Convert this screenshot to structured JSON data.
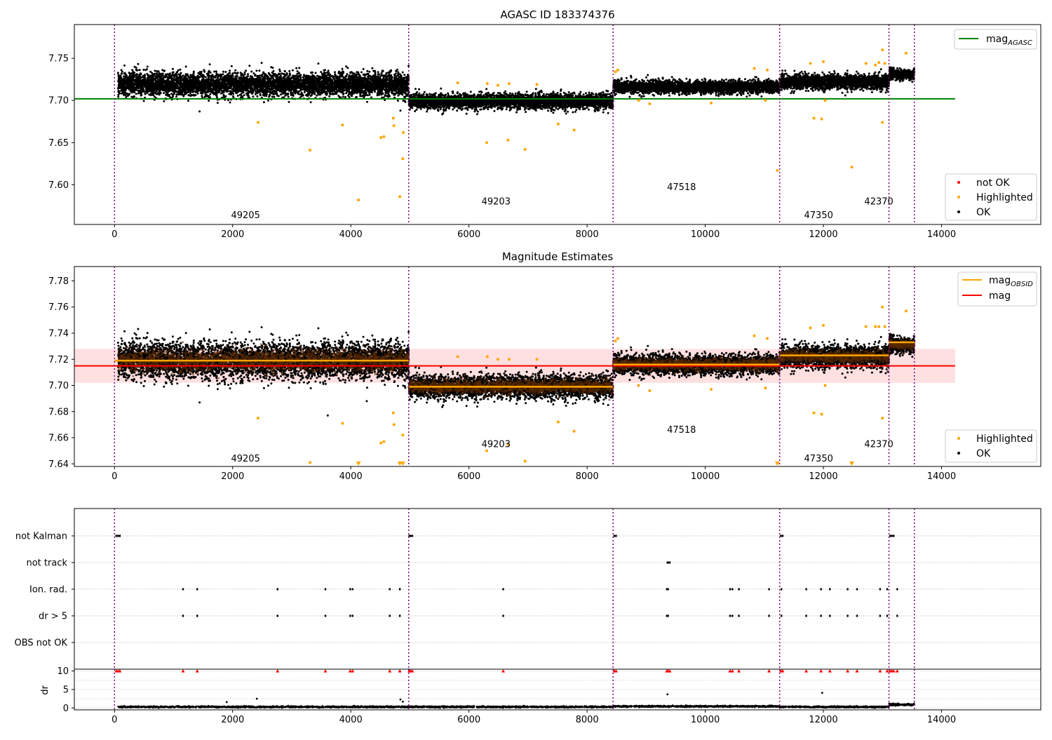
{
  "figure": {
    "panels": {
      "top": {
        "title": "AGASC ID 183374376",
        "legend_lines": [
          {
            "label": "mag",
            "subscript": "AGASC",
            "color": "#008000"
          }
        ],
        "legend_markers": [
          {
            "label": "not OK",
            "color": "#ff0000"
          },
          {
            "label": "Highlighted",
            "color": "#ffa500"
          },
          {
            "label": "OK",
            "color": "#000000"
          }
        ]
      },
      "middle": {
        "title": "Magnitude Estimates",
        "legend_lines": [
          {
            "label": "mag",
            "subscript": "OBSID",
            "color": "#ffa500"
          },
          {
            "label": "mag",
            "subscript": "",
            "color": "#ff0000"
          }
        ],
        "legend_markers": [
          {
            "label": "Highlighted",
            "color": "#ffa500"
          },
          {
            "label": "OK",
            "color": "#000000"
          }
        ]
      },
      "flags": {
        "categories": [
          "not Kalman",
          "not track",
          "Ion. rad.",
          "dr > 5",
          "OBS not OK"
        ]
      },
      "dr": {
        "ylabel": "dr"
      }
    }
  },
  "chart_data": [
    {
      "type": "scatter",
      "title": "AGASC ID 183374376",
      "xlabel": "",
      "ylabel": "",
      "xlim": [
        -680,
        15680
      ],
      "ylim": [
        7.553,
        7.79
      ],
      "xticks": [
        0,
        2000,
        4000,
        6000,
        8000,
        10000,
        12000,
        14000
      ],
      "yticks": [
        7.6,
        7.65,
        7.7,
        7.75
      ],
      "legend_position": "top-right / bottom-right",
      "reference_lines": [
        {
          "name": "mag_AGASC",
          "y": 7.702,
          "x_range": [
            -680,
            14230
          ],
          "color": "#008000"
        }
      ],
      "obsid_boundaries": [
        0,
        4980,
        8440,
        11260,
        13110,
        13540
      ],
      "obsid_labels": [
        {
          "text": "49205",
          "x": 2480,
          "y": 7.564
        },
        {
          "text": "49203",
          "x": 6720,
          "y": 7.58
        },
        {
          "text": "47518",
          "x": 9860,
          "y": 7.597
        },
        {
          "text": "47350",
          "x": 12180,
          "y": 7.564
        },
        {
          "text": "42370",
          "x": 13200,
          "y": 7.58
        }
      ],
      "segments": [
        {
          "obsid": "49205",
          "x_range": [
            60,
            4980
          ],
          "center": 7.719,
          "spread": 0.011
        },
        {
          "obsid": "49203",
          "x_range": [
            4980,
            8440
          ],
          "center": 7.699,
          "spread": 0.007
        },
        {
          "obsid": "47518",
          "x_range": [
            8440,
            11260
          ],
          "center": 7.716,
          "spread": 0.006
        },
        {
          "obsid": "47350",
          "x_range": [
            11260,
            13110
          ],
          "center": 7.722,
          "spread": 0.007
        },
        {
          "obsid": "42370",
          "x_range": [
            13110,
            13540
          ],
          "center": 7.731,
          "spread": 0.005
        }
      ],
      "series": [
        {
          "name": "Highlighted",
          "color": "#ffa500",
          "points": [
            [
              2430,
              7.674
            ],
            [
              3310,
              7.641
            ],
            [
              3860,
              7.671
            ],
            [
              4130,
              7.582
            ],
            [
              4510,
              7.656
            ],
            [
              4560,
              7.657
            ],
            [
              4720,
              7.679
            ],
            [
              4730,
              7.67
            ],
            [
              4830,
              7.586
            ],
            [
              4880,
              7.631
            ],
            [
              4890,
              7.662
            ],
            [
              5810,
              7.721
            ],
            [
              6300,
              7.65
            ],
            [
              6310,
              7.72
            ],
            [
              6490,
              7.718
            ],
            [
              6660,
              7.653
            ],
            [
              6680,
              7.72
            ],
            [
              6950,
              7.642
            ],
            [
              7150,
              7.719
            ],
            [
              7510,
              7.672
            ],
            [
              7780,
              7.665
            ],
            [
              8480,
              7.734
            ],
            [
              8520,
              7.736
            ],
            [
              8870,
              7.7
            ],
            [
              9060,
              7.696
            ],
            [
              10100,
              7.697
            ],
            [
              10830,
              7.738
            ],
            [
              11020,
              7.7
            ],
            [
              11050,
              7.736
            ],
            [
              11220,
              7.617
            ],
            [
              11780,
              7.744
            ],
            [
              11840,
              7.679
            ],
            [
              11970,
              7.678
            ],
            [
              12000,
              7.746
            ],
            [
              12030,
              7.7
            ],
            [
              12480,
              7.621
            ],
            [
              12720,
              7.744
            ],
            [
              12880,
              7.742
            ],
            [
              12940,
              7.745
            ],
            [
              13000,
              7.674
            ],
            [
              13000,
              7.76
            ],
            [
              13040,
              7.744
            ],
            [
              13400,
              7.756
            ]
          ]
        },
        {
          "name": "OK",
          "color": "#000000",
          "points": [
            [
              1440,
              7.687
            ],
            [
              4840,
              7.688
            ]
          ]
        }
      ]
    },
    {
      "type": "scatter",
      "title": "Magnitude Estimates",
      "xlabel": "",
      "ylabel": "",
      "xlim": [
        -680,
        15680
      ],
      "ylim": [
        7.638,
        7.791
      ],
      "xticks": [
        0,
        2000,
        4000,
        6000,
        8000,
        10000,
        12000,
        14000
      ],
      "yticks": [
        7.64,
        7.66,
        7.68,
        7.7,
        7.72,
        7.74,
        7.76,
        7.78
      ],
      "legend_position": "top-right / bottom-right",
      "reference_lines": [
        {
          "name": "mag",
          "y": 7.715,
          "x_range": [
            -680,
            14230
          ],
          "color": "#ff0000",
          "band": [
            7.702,
            7.728
          ]
        }
      ],
      "obsid_boundaries": [
        0,
        4980,
        8440,
        11260,
        13110,
        13540
      ],
      "mag_obsid": [
        {
          "obsid": "49205",
          "x_range": [
            0,
            4980
          ],
          "y": 7.719
        },
        {
          "obsid": "49203",
          "x_range": [
            4980,
            8440
          ],
          "y": 7.699
        },
        {
          "obsid": "47518",
          "x_range": [
            8440,
            11260
          ],
          "y": 7.716
        },
        {
          "obsid": "47350",
          "x_range": [
            11260,
            13110
          ],
          "y": 7.723
        },
        {
          "obsid": "42370",
          "x_range": [
            13110,
            13540
          ],
          "y": 7.733
        }
      ],
      "obsid_labels": [
        {
          "text": "49205",
          "x": 2480,
          "y": 7.644
        },
        {
          "text": "49203",
          "x": 6720,
          "y": 7.655
        },
        {
          "text": "47518",
          "x": 9860,
          "y": 7.666
        },
        {
          "text": "47350",
          "x": 12180,
          "y": 7.644
        },
        {
          "text": "42370",
          "x": 13200,
          "y": 7.655
        }
      ],
      "off_scale_markers": [
        4130,
        4830,
        4880,
        11220,
        12480
      ],
      "series": [
        {
          "name": "Highlighted",
          "color": "#ffa500",
          "points": [
            [
              2430,
              7.675
            ],
            [
              3310,
              7.641
            ],
            [
              3860,
              7.671
            ],
            [
              4510,
              7.656
            ],
            [
              4560,
              7.657
            ],
            [
              4720,
              7.679
            ],
            [
              4730,
              7.67
            ],
            [
              4880,
              7.662
            ],
            [
              5810,
              7.722
            ],
            [
              6300,
              7.65
            ],
            [
              6310,
              7.722
            ],
            [
              6490,
              7.72
            ],
            [
              6660,
              7.655
            ],
            [
              6680,
              7.72
            ],
            [
              6950,
              7.642
            ],
            [
              7150,
              7.72
            ],
            [
              7510,
              7.672
            ],
            [
              7780,
              7.665
            ],
            [
              8480,
              7.734
            ],
            [
              8520,
              7.736
            ],
            [
              8870,
              7.7
            ],
            [
              9060,
              7.696
            ],
            [
              10100,
              7.697
            ],
            [
              10830,
              7.738
            ],
            [
              11020,
              7.698
            ],
            [
              11050,
              7.736
            ],
            [
              11780,
              7.744
            ],
            [
              11840,
              7.679
            ],
            [
              11970,
              7.678
            ],
            [
              12000,
              7.746
            ],
            [
              12030,
              7.7
            ],
            [
              12720,
              7.745
            ],
            [
              12880,
              7.745
            ],
            [
              12940,
              7.745
            ],
            [
              13000,
              7.675
            ],
            [
              13000,
              7.76
            ],
            [
              13040,
              7.745
            ],
            [
              13400,
              7.757
            ]
          ]
        },
        {
          "name": "OK",
          "color": "#000000",
          "points": [
            [
              1440,
              7.687
            ],
            [
              4270,
              7.688
            ],
            [
              3610,
              7.677
            ]
          ]
        }
      ]
    },
    {
      "type": "scatter",
      "title": "",
      "xlabel": "",
      "ylabel": "",
      "xlim": [
        -680,
        15680
      ],
      "categories": [
        "not Kalman",
        "not track",
        "Ion. rad.",
        "dr > 5",
        "OBS not OK"
      ],
      "obsid_boundaries": [
        0,
        4980,
        8440,
        11260,
        13110,
        13540
      ],
      "series": [
        {
          "name": "not Kalman",
          "x": [
            30,
            60,
            90,
            4990,
            5010,
            5040,
            8460,
            8490,
            11280,
            11310,
            13130,
            13160,
            13190
          ]
        },
        {
          "name": "not track",
          "x": [
            9360,
            9380,
            9400
          ]
        },
        {
          "name": "Ion. rad.",
          "x": [
            1160,
            1400,
            2760,
            3570,
            3990,
            4030,
            4660,
            4830,
            6580,
            9350,
            9370,
            10420,
            10460,
            10570,
            11080,
            11290,
            11710,
            11960,
            12110,
            12410,
            12570,
            12960,
            13080,
            13250
          ]
        },
        {
          "name": "dr > 5",
          "x": [
            1160,
            1400,
            2760,
            3570,
            3990,
            4030,
            4660,
            4830,
            6580,
            9350,
            9370,
            10420,
            10460,
            10570,
            11080,
            11290,
            11710,
            11960,
            12110,
            12410,
            12570,
            12960,
            13080,
            13250
          ]
        },
        {
          "name": "OBS not OK",
          "x": []
        }
      ]
    },
    {
      "type": "scatter",
      "title": "",
      "xlabel": "",
      "ylabel": "dr",
      "xlim": [
        -680,
        15680
      ],
      "ylim": [
        -0.5,
        10.5
      ],
      "xticks": [
        0,
        2000,
        4000,
        6000,
        8000,
        10000,
        12000,
        14000
      ],
      "yticks": [
        0,
        5,
        10
      ],
      "clip_value": 10,
      "obsid_boundaries": [
        0,
        4980,
        8440,
        11260,
        13110,
        13540
      ],
      "baseline_segments": [
        {
          "x_range": [
            60,
            4980
          ],
          "mean": 0.3,
          "spread": 0.2
        },
        {
          "x_range": [
            4980,
            8440
          ],
          "mean": 0.3,
          "spread": 0.2
        },
        {
          "x_range": [
            8440,
            11260
          ],
          "mean": 0.45,
          "spread": 0.2
        },
        {
          "x_range": [
            11260,
            13110
          ],
          "mean": 0.3,
          "spread": 0.2
        },
        {
          "x_range": [
            13110,
            13540
          ],
          "mean": 0.9,
          "spread": 0.3
        }
      ],
      "series": [
        {
          "name": "clipped",
          "color": "#ff0000",
          "x": [
            30,
            60,
            90,
            1160,
            1400,
            2760,
            3570,
            3990,
            4030,
            4660,
            4830,
            4990,
            5010,
            5040,
            6580,
            8460,
            8490,
            9350,
            9370,
            9400,
            10420,
            10460,
            10570,
            11080,
            11280,
            11310,
            11710,
            11960,
            12110,
            12410,
            12570,
            12960,
            13080,
            13130,
            13160,
            13190,
            13250
          ]
        },
        {
          "name": "outliers",
          "color": "#000000",
          "points": [
            [
              1900,
              1.6
            ],
            [
              2410,
              2.5
            ],
            [
              4840,
              2.3
            ],
            [
              4880,
              1.7
            ],
            [
              9360,
              3.7
            ],
            [
              11980,
              4.1
            ],
            [
              13190,
              1.2
            ]
          ]
        }
      ]
    }
  ]
}
